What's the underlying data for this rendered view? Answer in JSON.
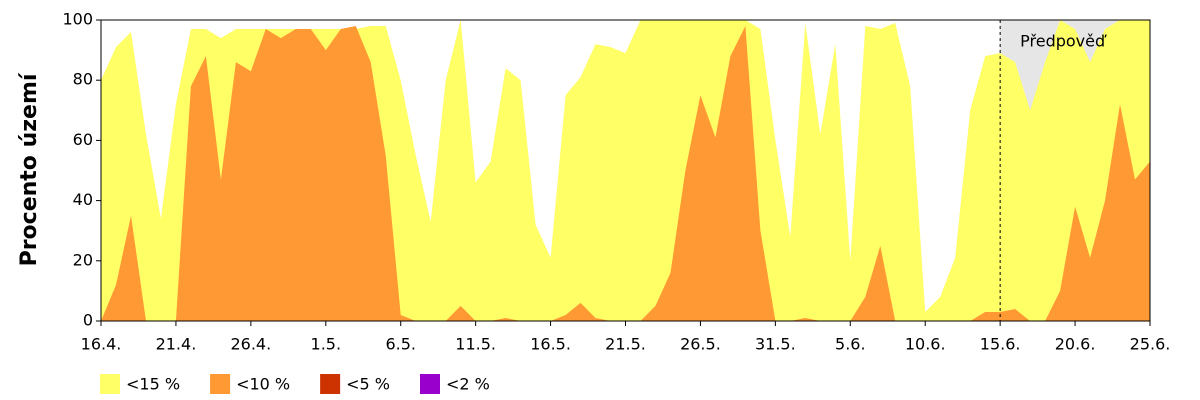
{
  "chart_data": {
    "type": "area",
    "y_label": "Procento území",
    "categories": [
      "16.4.",
      null,
      null,
      null,
      null,
      "21.4.",
      null,
      null,
      null,
      null,
      "26.4.",
      null,
      null,
      null,
      null,
      "1.5.",
      null,
      null,
      null,
      null,
      "6.5.",
      null,
      null,
      null,
      null,
      "11.5.",
      null,
      null,
      null,
      null,
      "16.5.",
      null,
      null,
      null,
      null,
      "21.5.",
      null,
      null,
      null,
      null,
      "26.5.",
      null,
      null,
      null,
      null,
      "31.5.",
      null,
      null,
      null,
      null,
      "5.6.",
      null,
      null,
      null,
      null,
      "10.6.",
      null,
      null,
      null,
      null,
      "15.6.",
      null,
      null,
      null,
      null,
      "20.6.",
      null,
      null,
      null,
      null,
      "25.6."
    ],
    "series": [
      {
        "name": "<15 %",
        "color": "#ffff66",
        "values": [
          80,
          91,
          96,
          62,
          34,
          72,
          97,
          97,
          94,
          97,
          97,
          97,
          97,
          97,
          97,
          97,
          97,
          97,
          98,
          98,
          80,
          55,
          33,
          80,
          100,
          46,
          53,
          84,
          80,
          32,
          21,
          75,
          81,
          92,
          91,
          89,
          100,
          100,
          100,
          100,
          100,
          100,
          100,
          100,
          97,
          60,
          28,
          99,
          62,
          92,
          20,
          98,
          97,
          99,
          78,
          3,
          8,
          21,
          70,
          88,
          89,
          86,
          70,
          86,
          100,
          97,
          86,
          97,
          100,
          100,
          100
        ]
      },
      {
        "name": "<10 %",
        "color": "#ff9933",
        "values": [
          0,
          12,
          35,
          0,
          0,
          0,
          78,
          88,
          47,
          86,
          83,
          97,
          94,
          97,
          97,
          90,
          97,
          98,
          86,
          55,
          2,
          0,
          0,
          0,
          5,
          0,
          0,
          1,
          0,
          0,
          0,
          2,
          6,
          1,
          0,
          0,
          0,
          5,
          16,
          50,
          75,
          61,
          88,
          98,
          30,
          0,
          0,
          1,
          0,
          0,
          0,
          8,
          25,
          0,
          0,
          0,
          0,
          0,
          0,
          3,
          3,
          4,
          0,
          0,
          10,
          38,
          21,
          40,
          72,
          47,
          53
        ]
      },
      {
        "name": "<5 %",
        "color": "#cc3300",
        "values": [
          0,
          0,
          0,
          0,
          0,
          0,
          0,
          0,
          0,
          0,
          0,
          0,
          0,
          0,
          0,
          0,
          0,
          0,
          0,
          0,
          0,
          0,
          0,
          0,
          0,
          0,
          0,
          0,
          0,
          0,
          0,
          0,
          0,
          0,
          0,
          0,
          0,
          0,
          0,
          0,
          0,
          0,
          0,
          0,
          0,
          0,
          0,
          0,
          0,
          0,
          0,
          0,
          0,
          0,
          0,
          0,
          0,
          0,
          0,
          0,
          0,
          0,
          0,
          0,
          0,
          0,
          0,
          0,
          0,
          0,
          0
        ]
      },
      {
        "name": "<2 %",
        "color": "#9900cc",
        "values": [
          0,
          0,
          0,
          0,
          0,
          0,
          0,
          0,
          0,
          0,
          0,
          0,
          0,
          0,
          0,
          0,
          0,
          0,
          0,
          0,
          0,
          0,
          0,
          0,
          0,
          0,
          0,
          0,
          0,
          0,
          0,
          0,
          0,
          0,
          0,
          0,
          0,
          0,
          0,
          0,
          0,
          0,
          0,
          0,
          0,
          0,
          0,
          0,
          0,
          0,
          0,
          0,
          0,
          0,
          0,
          0,
          0,
          0,
          0,
          0,
          0,
          0,
          0,
          0,
          0,
          0,
          0,
          0,
          0,
          0,
          0
        ]
      }
    ],
    "ylim": [
      0,
      100
    ],
    "yticks": [
      0,
      20,
      40,
      60,
      80,
      100
    ],
    "forecast": {
      "text": "Předpověď",
      "start": "15.6."
    }
  }
}
